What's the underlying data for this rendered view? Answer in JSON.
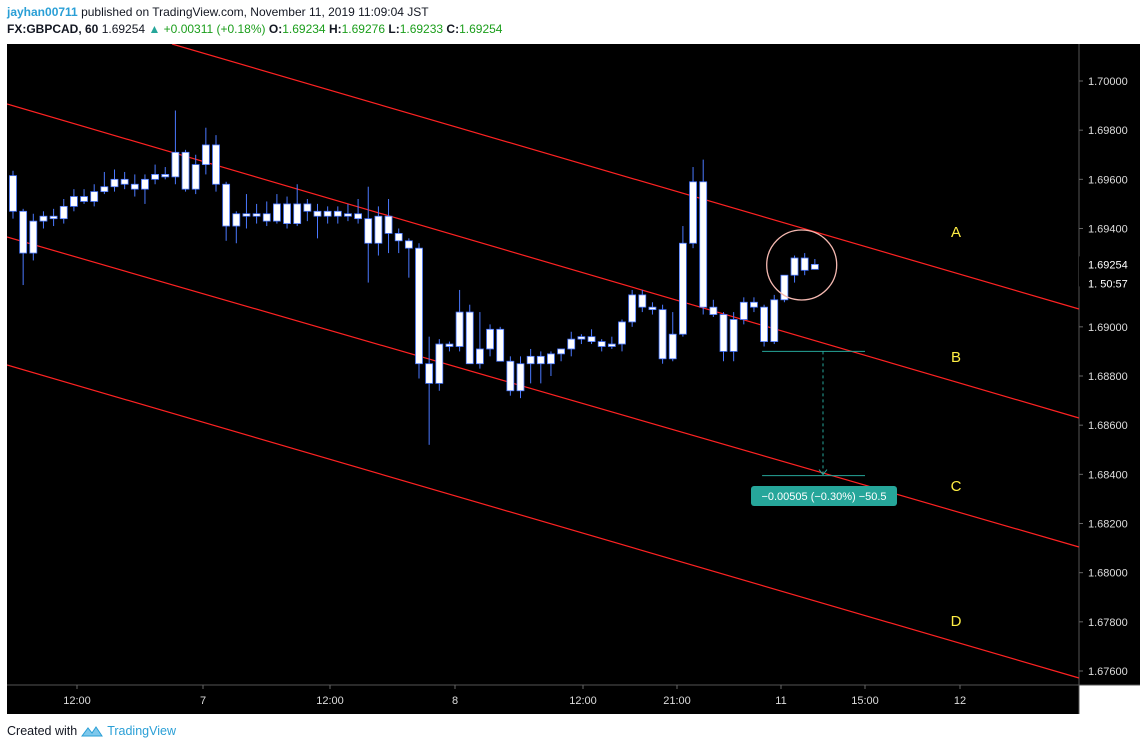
{
  "header": {
    "user": "jayhan00711",
    "published": "published on TradingView.com, November 11, 2019 11:09:04 JST",
    "symbol": "FX:GBPCAD, 60",
    "last": "1.69254",
    "change": "+0.00311 (+0.18%)",
    "o_label": "O:",
    "o": "1.69234",
    "h_label": "H:",
    "h": "1.69276",
    "l_label": "L:",
    "l": "1.69233",
    "c_label": "C:",
    "c": "1.69254"
  },
  "footer": {
    "created": "Created with",
    "brand": "TradingView"
  },
  "colors": {
    "background": "#000000",
    "channel": "#ff2222",
    "candle": "#ffffff",
    "candle_outline": "#4a78ff",
    "labels": "#ffee44",
    "measure": "#26a69a",
    "circle": "#f4b8b0"
  },
  "chart_data": {
    "type": "candlestick",
    "y_ticks": [
      "1.70000",
      "1.69800",
      "1.69600",
      "1.69400",
      "1.69200",
      "1.69000",
      "1.68800",
      "1.68600",
      "1.68400",
      "1.68200",
      "1.68000",
      "1.67800",
      "1.67600"
    ],
    "ylim": [
      1.675,
      1.702
    ],
    "x_ticks": [
      "12:00",
      "7",
      "12:00",
      "8",
      "12:00",
      "21:00",
      "11",
      "15:00",
      "12"
    ],
    "last_price_label": "1.69254",
    "countdown_label": "50:57",
    "channel_labels": [
      "A",
      "B",
      "C",
      "D"
    ],
    "measure_label": "−0.00505 (−0.30%) −50.5",
    "candles": [
      {
        "o": 1.69615,
        "h": 1.69635,
        "l": 1.6944,
        "c": 1.6947
      },
      {
        "o": 1.6947,
        "h": 1.6948,
        "l": 1.6917,
        "c": 1.693
      },
      {
        "o": 1.693,
        "h": 1.6946,
        "l": 1.6927,
        "c": 1.6943
      },
      {
        "o": 1.6943,
        "h": 1.6947,
        "l": 1.694,
        "c": 1.6945
      },
      {
        "o": 1.6945,
        "h": 1.6948,
        "l": 1.6941,
        "c": 1.6944
      },
      {
        "o": 1.6944,
        "h": 1.6952,
        "l": 1.6942,
        "c": 1.6949
      },
      {
        "o": 1.6949,
        "h": 1.6956,
        "l": 1.6947,
        "c": 1.6953
      },
      {
        "o": 1.6953,
        "h": 1.6956,
        "l": 1.695,
        "c": 1.6951
      },
      {
        "o": 1.6951,
        "h": 1.6958,
        "l": 1.6949,
        "c": 1.6955
      },
      {
        "o": 1.6955,
        "h": 1.6963,
        "l": 1.6954,
        "c": 1.6957
      },
      {
        "o": 1.6957,
        "h": 1.6964,
        "l": 1.6955,
        "c": 1.696
      },
      {
        "o": 1.696,
        "h": 1.6963,
        "l": 1.6956,
        "c": 1.6958
      },
      {
        "o": 1.6958,
        "h": 1.6962,
        "l": 1.6953,
        "c": 1.6956
      },
      {
        "o": 1.6956,
        "h": 1.6962,
        "l": 1.695,
        "c": 1.696
      },
      {
        "o": 1.696,
        "h": 1.6966,
        "l": 1.6958,
        "c": 1.6962
      },
      {
        "o": 1.6962,
        "h": 1.6965,
        "l": 1.696,
        "c": 1.6961
      },
      {
        "o": 1.6961,
        "h": 1.6988,
        "l": 1.6958,
        "c": 1.6971
      },
      {
        "o": 1.6971,
        "h": 1.6972,
        "l": 1.6955,
        "c": 1.6956
      },
      {
        "o": 1.6956,
        "h": 1.697,
        "l": 1.6954,
        "c": 1.6966
      },
      {
        "o": 1.6966,
        "h": 1.6981,
        "l": 1.6962,
        "c": 1.6974
      },
      {
        "o": 1.6974,
        "h": 1.6978,
        "l": 1.6955,
        "c": 1.6958
      },
      {
        "o": 1.6958,
        "h": 1.6959,
        "l": 1.6935,
        "c": 1.6941
      },
      {
        "o": 1.6941,
        "h": 1.6947,
        "l": 1.6934,
        "c": 1.6946
      },
      {
        "o": 1.6946,
        "h": 1.6954,
        "l": 1.694,
        "c": 1.6945
      },
      {
        "o": 1.6945,
        "h": 1.695,
        "l": 1.6942,
        "c": 1.6946
      },
      {
        "o": 1.6946,
        "h": 1.6951,
        "l": 1.6941,
        "c": 1.6943
      },
      {
        "o": 1.6943,
        "h": 1.6954,
        "l": 1.6942,
        "c": 1.695
      },
      {
        "o": 1.695,
        "h": 1.6953,
        "l": 1.694,
        "c": 1.6942
      },
      {
        "o": 1.6942,
        "h": 1.6958,
        "l": 1.6941,
        "c": 1.695
      },
      {
        "o": 1.695,
        "h": 1.6952,
        "l": 1.6943,
        "c": 1.6947
      },
      {
        "o": 1.6947,
        "h": 1.695,
        "l": 1.6936,
        "c": 1.6945
      },
      {
        "o": 1.6945,
        "h": 1.6949,
        "l": 1.6942,
        "c": 1.6947
      },
      {
        "o": 1.6947,
        "h": 1.6949,
        "l": 1.6942,
        "c": 1.6945
      },
      {
        "o": 1.6945,
        "h": 1.695,
        "l": 1.6943,
        "c": 1.6946
      },
      {
        "o": 1.6946,
        "h": 1.6952,
        "l": 1.6942,
        "c": 1.6944
      },
      {
        "o": 1.6944,
        "h": 1.6957,
        "l": 1.6918,
        "c": 1.6934
      },
      {
        "o": 1.6934,
        "h": 1.6949,
        "l": 1.6929,
        "c": 1.6945
      },
      {
        "o": 1.6945,
        "h": 1.6952,
        "l": 1.693,
        "c": 1.6938
      },
      {
        "o": 1.6938,
        "h": 1.694,
        "l": 1.693,
        "c": 1.6935
      },
      {
        "o": 1.6935,
        "h": 1.6936,
        "l": 1.692,
        "c": 1.6932
      },
      {
        "o": 1.6932,
        "h": 1.6934,
        "l": 1.6879,
        "c": 1.6885
      },
      {
        "o": 1.6885,
        "h": 1.6896,
        "l": 1.6852,
        "c": 1.6877
      },
      {
        "o": 1.6877,
        "h": 1.6895,
        "l": 1.6874,
        "c": 1.6893
      },
      {
        "o": 1.6893,
        "h": 1.6894,
        "l": 1.689,
        "c": 1.6892
      },
      {
        "o": 1.6892,
        "h": 1.6915,
        "l": 1.689,
        "c": 1.6906
      },
      {
        "o": 1.6906,
        "h": 1.6909,
        "l": 1.6885,
        "c": 1.6885
      },
      {
        "o": 1.6885,
        "h": 1.6906,
        "l": 1.6883,
        "c": 1.6891
      },
      {
        "o": 1.6891,
        "h": 1.6901,
        "l": 1.6888,
        "c": 1.6899
      },
      {
        "o": 1.6899,
        "h": 1.69,
        "l": 1.6886,
        "c": 1.6886
      },
      {
        "o": 1.6886,
        "h": 1.6888,
        "l": 1.6872,
        "c": 1.6874
      },
      {
        "o": 1.6874,
        "h": 1.6888,
        "l": 1.6871,
        "c": 1.6885
      },
      {
        "o": 1.6885,
        "h": 1.6891,
        "l": 1.6877,
        "c": 1.6888
      },
      {
        "o": 1.6888,
        "h": 1.689,
        "l": 1.6877,
        "c": 1.6885
      },
      {
        "o": 1.6885,
        "h": 1.689,
        "l": 1.688,
        "c": 1.6889
      },
      {
        "o": 1.6889,
        "h": 1.6891,
        "l": 1.6886,
        "c": 1.6891
      },
      {
        "o": 1.6891,
        "h": 1.6898,
        "l": 1.6888,
        "c": 1.6895
      },
      {
        "o": 1.6895,
        "h": 1.6897,
        "l": 1.6893,
        "c": 1.6896
      },
      {
        "o": 1.6896,
        "h": 1.6899,
        "l": 1.6893,
        "c": 1.6894
      },
      {
        "o": 1.6894,
        "h": 1.6895,
        "l": 1.689,
        "c": 1.6892
      },
      {
        "o": 1.6892,
        "h": 1.6896,
        "l": 1.6891,
        "c": 1.6893
      },
      {
        "o": 1.6893,
        "h": 1.6903,
        "l": 1.689,
        "c": 1.6902
      },
      {
        "o": 1.6902,
        "h": 1.6915,
        "l": 1.69,
        "c": 1.6913
      },
      {
        "o": 1.6913,
        "h": 1.6915,
        "l": 1.6906,
        "c": 1.6908
      },
      {
        "o": 1.6908,
        "h": 1.691,
        "l": 1.6905,
        "c": 1.6907
      },
      {
        "o": 1.6907,
        "h": 1.6909,
        "l": 1.6885,
        "c": 1.6887
      },
      {
        "o": 1.6887,
        "h": 1.6906,
        "l": 1.6886,
        "c": 1.6897
      },
      {
        "o": 1.6897,
        "h": 1.6941,
        "l": 1.6896,
        "c": 1.6934
      },
      {
        "o": 1.6934,
        "h": 1.6965,
        "l": 1.6932,
        "c": 1.6959
      },
      {
        "o": 1.6959,
        "h": 1.6968,
        "l": 1.6905,
        "c": 1.6908
      },
      {
        "o": 1.6908,
        "h": 1.6911,
        "l": 1.6904,
        "c": 1.6905
      },
      {
        "o": 1.6905,
        "h": 1.6906,
        "l": 1.6886,
        "c": 1.689
      },
      {
        "o": 1.689,
        "h": 1.6906,
        "l": 1.6886,
        "c": 1.6903
      },
      {
        "o": 1.6903,
        "h": 1.6912,
        "l": 1.6901,
        "c": 1.691
      },
      {
        "o": 1.691,
        "h": 1.6912,
        "l": 1.6906,
        "c": 1.6908
      },
      {
        "o": 1.6908,
        "h": 1.6909,
        "l": 1.6892,
        "c": 1.6894
      },
      {
        "o": 1.6894,
        "h": 1.6913,
        "l": 1.6893,
        "c": 1.6911
      },
      {
        "o": 1.6911,
        "h": 1.6921,
        "l": 1.691,
        "c": 1.6921
      },
      {
        "o": 1.6921,
        "h": 1.6929,
        "l": 1.6918,
        "c": 1.6928
      },
      {
        "o": 1.6928,
        "h": 1.693,
        "l": 1.6921,
        "c": 1.6923
      },
      {
        "o": 1.69234,
        "h": 1.69276,
        "l": 1.69233,
        "c": 1.69254
      }
    ],
    "measure": {
      "from": 1.689,
      "to": 1.68395,
      "start_index": 74,
      "end_index": 81
    }
  }
}
